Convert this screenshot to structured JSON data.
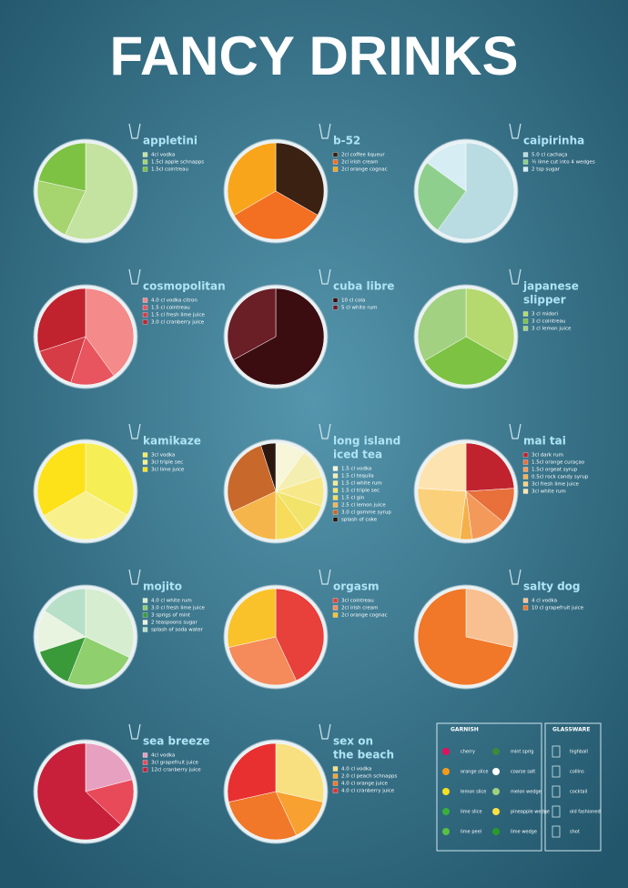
{
  "title": "FANCY DRINKS",
  "drinks": [
    {
      "name": [
        "appletini"
      ],
      "ingredients": [
        "4cl vodka",
        "1.5cl apple schnapps",
        "1.5cl cointreau"
      ],
      "colors": [
        "#c4e3a0",
        "#a6d46f",
        "#7dc243"
      ],
      "slices": [
        57,
        21.5,
        21.5
      ]
    },
    {
      "name": [
        "b-52"
      ],
      "ingredients": [
        "2cl coffee liqueur",
        "2cl irish cream",
        "2cl orange cognac"
      ],
      "colors": [
        "#3b2112",
        "#f36f21",
        "#f9a51b"
      ],
      "slices": [
        33.3,
        33.3,
        33.4
      ]
    },
    {
      "name": [
        "caipirinha"
      ],
      "ingredients": [
        "5.0 cl cachaça",
        "½ lime cut into 4 wedges",
        "2 tsp sugar"
      ],
      "colors": [
        "#b9dbe2",
        "#8fcf8e",
        "#d6edf3"
      ],
      "slices": [
        60,
        25,
        15
      ]
    },
    {
      "name": [
        "cosmopolitan"
      ],
      "ingredients": [
        "4.0 cl vodka citron",
        "1.5 cl cointreau",
        "1.5 cl fresh lime juice",
        "3.0 cl cranberry juice"
      ],
      "colors": [
        "#f48a8a",
        "#e8555e",
        "#d63c45",
        "#c0232e"
      ],
      "slices": [
        40,
        15,
        15,
        30
      ]
    },
    {
      "name": [
        "cuba libre"
      ],
      "ingredients": [
        "10 cl cola",
        "5 cl white rum"
      ],
      "colors": [
        "#3b0d10",
        "#6a1e26"
      ],
      "slices": [
        67,
        33
      ]
    },
    {
      "name": [
        "japanese",
        "slipper"
      ],
      "ingredients": [
        "3 cl midori",
        "3 cl cointreau",
        "3 cl lemon juice"
      ],
      "colors": [
        "#b6d96f",
        "#7dc243",
        "#a2d182"
      ],
      "slices": [
        33.3,
        33.3,
        33.4
      ]
    },
    {
      "name": [
        "kamikaze"
      ],
      "ingredients": [
        "3cl vodka",
        "3cl triple sec",
        "3cl lime juice"
      ],
      "colors": [
        "#f5ee55",
        "#f8f08a",
        "#fde21a"
      ],
      "slices": [
        33.3,
        33.3,
        33.4
      ]
    },
    {
      "name": [
        "long island",
        "iced tea"
      ],
      "ingredients": [
        "1.5 cl vodka",
        "1.5 cl tequila",
        "1.5 cl white rum",
        "1.5 cl triple sec",
        "1.5 cl gin",
        "2.5 cl lemon juice",
        "3.0 cl gomme syrup",
        "splash of coke"
      ],
      "colors": [
        "#f8f6d8",
        "#f4eeb0",
        "#f7e98a",
        "#f2e46a",
        "#f6dc5a",
        "#f5b54a",
        "#c8682a",
        "#2a1810"
      ],
      "slices": [
        10,
        10,
        10,
        10,
        10,
        18,
        27,
        5
      ]
    },
    {
      "name": [
        "mai tai"
      ],
      "ingredients": [
        "3cl dark rum",
        "1.5cl orange curaçao",
        "1.5cl orgeat syrup",
        "0.5cl rock candy syrup",
        "3cl fresh lime juice",
        "3cl white rum"
      ],
      "colors": [
        "#c0232e",
        "#e8703a",
        "#f39a5a",
        "#f6b04a",
        "#fbd07a",
        "#fde3b0"
      ],
      "slices": [
        24,
        12,
        12,
        4,
        24,
        24
      ]
    },
    {
      "name": [
        "mojito"
      ],
      "ingredients": [
        "4.0 cl white rum",
        "3.0 cl fresh lime juice",
        "3 sprigs of mint",
        "2 teaspoons sugar",
        "splash of soda water"
      ],
      "colors": [
        "#d6edd0",
        "#8fcf6e",
        "#3a9a3a",
        "#e8f3e0",
        "#b8e0c8"
      ],
      "slices": [
        32,
        24,
        14,
        14,
        16
      ]
    },
    {
      "name": [
        "orgasm"
      ],
      "ingredients": [
        "3cl cointreau",
        "2cl irish cream",
        "2cl orange cognac"
      ],
      "colors": [
        "#e8403a",
        "#f58a5a",
        "#f9c22a"
      ],
      "slices": [
        43,
        28.5,
        28.5
      ]
    },
    {
      "name": [
        "salty dog"
      ],
      "ingredients": [
        "4 cl vodka",
        "10 cl grapefruit juice"
      ],
      "colors": [
        "#f8c090",
        "#f07828"
      ],
      "slices": [
        28.5,
        71.5
      ]
    },
    {
      "name": [
        "sea breeze"
      ],
      "ingredients": [
        "4cl vodka",
        "3cl grapefruit juice",
        "12cl cranberry juice"
      ],
      "colors": [
        "#e8a0c0",
        "#e84a5a",
        "#c8203a"
      ],
      "slices": [
        21,
        16,
        63
      ]
    },
    {
      "name": [
        "sex on",
        "the beach"
      ],
      "ingredients": [
        "4.0 cl vodka",
        "2.0 cl peach schnapps",
        "4.0 cl orange juice",
        "4.0 cl cranberry juice"
      ],
      "colors": [
        "#f8e080",
        "#f8a030",
        "#f07828",
        "#e83030"
      ],
      "slices": [
        28.5,
        14.5,
        28.5,
        28.5
      ]
    }
  ],
  "legend": {
    "garnish_title": "GARNISH",
    "garnish": [
      {
        "label": "cherry",
        "color": "#e0115f"
      },
      {
        "label": "mint sprig",
        "color": "#3a8a3a"
      },
      {
        "label": "orange slice",
        "color": "#f39a1b"
      },
      {
        "label": "coarse salt",
        "color": "#ffffff"
      },
      {
        "label": "lemon slice",
        "color": "#f5e020"
      },
      {
        "label": "melon wedge",
        "color": "#9fd07f"
      },
      {
        "label": "lime slice",
        "color": "#3ab03a"
      },
      {
        "label": "pineapple wedge",
        "color": "#f8e040"
      },
      {
        "label": "lime peel",
        "color": "#5ac040"
      },
      {
        "label": "lime wedge",
        "color": "#2a9a2a"
      }
    ],
    "glassware_title": "GLASSWARE",
    "glassware": [
      "highball",
      "collins",
      "cocktail",
      "old fashioned",
      "shot"
    ]
  }
}
